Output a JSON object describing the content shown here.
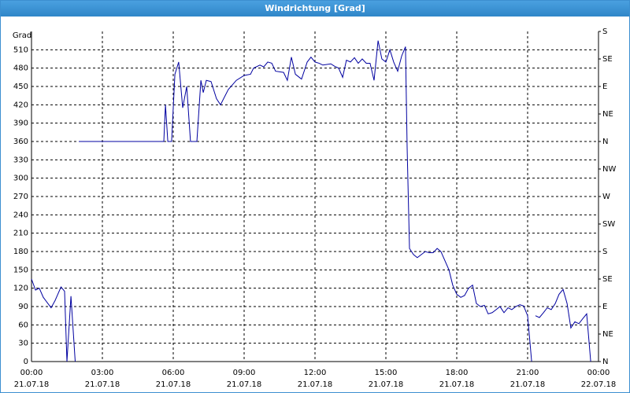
{
  "chart_data": {
    "type": "line",
    "title": "Windrichtung [Grad]",
    "y_label": "Grad",
    "x": [
      0,
      0.17,
      0.33,
      0.5,
      0.83,
      1.0,
      1.25,
      1.4,
      1.5,
      1.67,
      1.85,
      1.92,
      2.0,
      5.5,
      5.6,
      5.67,
      5.77,
      5.93,
      6.07,
      6.23,
      6.4,
      6.57,
      6.73,
      7.0,
      7.17,
      7.27,
      7.4,
      7.6,
      7.83,
      8.0,
      8.33,
      8.67,
      9.0,
      9.27,
      9.4,
      9.67,
      9.83,
      10.0,
      10.17,
      10.33,
      10.67,
      10.83,
      11.0,
      11.17,
      11.43,
      11.67,
      11.83,
      12.0,
      12.17,
      12.33,
      12.67,
      12.83,
      13.0,
      13.17,
      13.33,
      13.5,
      13.67,
      13.83,
      14.0,
      14.17,
      14.33,
      14.5,
      14.67,
      14.83,
      15.0,
      15.17,
      15.33,
      15.5,
      15.67,
      15.83,
      15.9,
      16.0,
      16.17,
      16.33,
      16.5,
      16.67,
      16.83,
      17.0,
      17.17,
      17.33,
      17.5,
      17.67,
      17.83,
      18.0,
      18.17,
      18.33,
      18.5,
      18.67,
      18.83,
      19.0,
      19.17,
      19.33,
      19.5,
      19.67,
      19.83,
      20.0,
      20.17,
      20.33,
      20.5,
      20.67,
      20.83,
      21.0,
      21.17,
      21.25,
      21.33,
      21.5,
      21.67,
      21.83,
      22.0,
      22.17,
      22.33,
      22.5,
      22.67,
      22.83,
      23.0,
      23.17,
      23.33,
      23.5,
      23.67
    ],
    "values": [
      135,
      117,
      120,
      105,
      88,
      100,
      122,
      115,
      0,
      107,
      0,
      null,
      360,
      360,
      360,
      420,
      360,
      360,
      470,
      490,
      415,
      450,
      360,
      360,
      460,
      440,
      460,
      458,
      430,
      420,
      445,
      460,
      468,
      470,
      480,
      485,
      482,
      490,
      488,
      475,
      473,
      460,
      498,
      470,
      462,
      490,
      498,
      490,
      488,
      485,
      487,
      483,
      480,
      465,
      493,
      490,
      497,
      488,
      495,
      488,
      488,
      460,
      525,
      495,
      490,
      510,
      490,
      475,
      500,
      515,
      350,
      185,
      175,
      170,
      175,
      180,
      178,
      178,
      185,
      180,
      165,
      150,
      125,
      110,
      105,
      108,
      120,
      125,
      95,
      90,
      92,
      78,
      80,
      85,
      90,
      80,
      88,
      85,
      90,
      93,
      91,
      75,
      0,
      null,
      75,
      72,
      80,
      88,
      85,
      95,
      110,
      118,
      95,
      55,
      65,
      62,
      70,
      78,
      0
    ],
    "color": "#0000a0",
    "xlim": [
      0,
      24
    ],
    "xticks": [
      {
        "value": 0,
        "label": "00:00",
        "date": "21.07.18"
      },
      {
        "value": 3,
        "label": "03:00",
        "date": "21.07.18"
      },
      {
        "value": 6,
        "label": "06:00",
        "date": "21.07.18"
      },
      {
        "value": 9,
        "label": "09:00",
        "date": "21.07.18"
      },
      {
        "value": 12,
        "label": "12:00",
        "date": "21.07.18"
      },
      {
        "value": 15,
        "label": "15:00",
        "date": "21.07.18"
      },
      {
        "value": 18,
        "label": "18:00",
        "date": "21.07.18"
      },
      {
        "value": 21,
        "label": "21:00",
        "date": "21.07.18"
      },
      {
        "value": 24,
        "label": "00:00",
        "date": "22.07.18"
      }
    ],
    "ylim": [
      0,
      540
    ],
    "yticks": [
      0,
      30,
      60,
      90,
      120,
      150,
      180,
      210,
      240,
      270,
      300,
      330,
      360,
      390,
      420,
      450,
      480,
      510
    ],
    "y2lim": [
      0,
      540
    ],
    "y2ticks": [
      {
        "value": 0,
        "label": "N"
      },
      {
        "value": 45,
        "label": "NE"
      },
      {
        "value": 90,
        "label": "E"
      },
      {
        "value": 135,
        "label": "SE"
      },
      {
        "value": 180,
        "label": "S"
      },
      {
        "value": 225,
        "label": "SW"
      },
      {
        "value": 270,
        "label": "W"
      },
      {
        "value": 315,
        "label": "NW"
      },
      {
        "value": 360,
        "label": "N"
      },
      {
        "value": 405,
        "label": "NE"
      },
      {
        "value": 450,
        "label": "E"
      },
      {
        "value": 495,
        "label": "SE"
      },
      {
        "value": 540,
        "label": "S"
      }
    ],
    "grid": true
  }
}
